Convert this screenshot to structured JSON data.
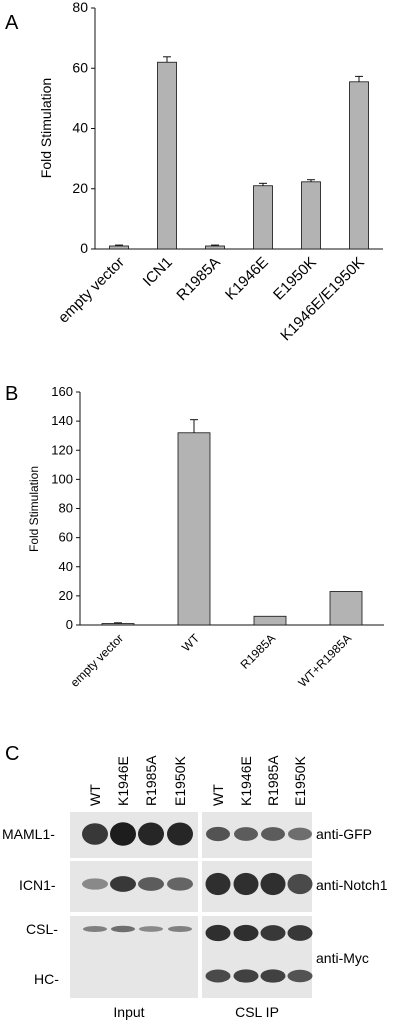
{
  "figure": {
    "panel_a_label": "A",
    "panel_b_label": "B",
    "panel_c_label": "C",
    "colors": {
      "bar": "#b3b3b3",
      "axis": "#111111",
      "band": "#1a1a1a",
      "membrane": "#e6e6e6"
    }
  },
  "chart_data": [
    {
      "type": "bar",
      "panel": "A",
      "ylabel": "Fold Stimulation",
      "ylim": [
        0,
        80
      ],
      "yticks": [
        "0",
        "20",
        "40",
        "60",
        "80"
      ],
      "categories": [
        "empty vector",
        "ICN1",
        "R1985A",
        "K1946E",
        "E1950K",
        "K1946E/E1950K"
      ],
      "values": [
        1,
        62,
        1,
        21,
        22.3,
        55.5
      ],
      "errors": [
        0.3,
        1.8,
        0.3,
        0.8,
        0.7,
        1.8
      ]
    },
    {
      "type": "bar",
      "panel": "B",
      "ylabel": "Fold Stimulation",
      "ylim": [
        0,
        160
      ],
      "yticks": [
        "0",
        "20",
        "40",
        "60",
        "80",
        "100",
        "120",
        "140",
        "160"
      ],
      "categories": [
        "empty vector",
        "WT",
        "R1985A",
        "WT+R1985A"
      ],
      "values": [
        1,
        132,
        6,
        23
      ],
      "errors": [
        0.5,
        9,
        0,
        0
      ]
    }
  ],
  "blot": {
    "lanes": [
      "WT",
      "K1946E",
      "R1985A",
      "E1950K"
    ],
    "left_labels": [
      "MAML1-",
      "ICN1-",
      "CSL-",
      "HC-"
    ],
    "right_labels": [
      "anti-GFP",
      "anti-Notch1",
      "anti-Myc"
    ],
    "group_labels": [
      "Input",
      "CSL IP"
    ],
    "bands_maml1_input": [
      0.8,
      0.95,
      0.9,
      0.9
    ],
    "bands_maml1_ip": [
      0.65,
      0.6,
      0.6,
      0.5
    ],
    "bands_icn1_input": [
      0.35,
      0.8,
      0.6,
      0.55
    ],
    "bands_icn1_ip": [
      0.85,
      0.85,
      0.85,
      0.7
    ],
    "bands_csl_input": [
      0.4,
      0.5,
      0.35,
      0.4
    ],
    "bands_csl_ip": [
      0.85,
      0.85,
      0.8,
      0.8
    ],
    "bands_hc_ip": [
      0.7,
      0.75,
      0.75,
      0.65
    ]
  }
}
